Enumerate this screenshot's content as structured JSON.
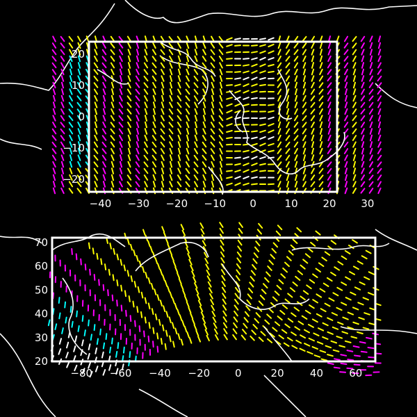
{
  "chart_data": [
    {
      "type": "quiver",
      "projection": "rotated-pole",
      "xlim": [
        -43,
        22
      ],
      "ylim": [
        -24,
        24
      ],
      "xticks": [
        -40,
        -30,
        -20,
        -10,
        0,
        10,
        20,
        30
      ],
      "yticks": [
        -20,
        -10,
        0,
        10,
        20
      ],
      "xticklabels": [
        "−40",
        "−30",
        "−20",
        "−10",
        "0",
        "10",
        "20",
        "30"
      ],
      "yticklabels": [
        "−20",
        "−10",
        "0",
        "10",
        "20"
      ],
      "grid": false,
      "colormap": [
        "#ffff00",
        "#ff00ff",
        "#00ffff"
      ]
    },
    {
      "type": "quiver",
      "projection": "plate-carree",
      "xlim": [
        -95,
        70
      ],
      "ylim": [
        20,
        72
      ],
      "xticks": [
        -80,
        -60,
        -40,
        -20,
        0,
        20,
        40,
        60
      ],
      "yticks": [
        20,
        30,
        40,
        50,
        60,
        70
      ],
      "xticklabels": [
        "−80",
        "−60",
        "−40",
        "−20",
        "0",
        "20",
        "40",
        "60"
      ],
      "yticklabels": [
        "20",
        "30",
        "40",
        "50",
        "60",
        "70"
      ],
      "grid": false,
      "colormap": [
        "#ffff00",
        "#ff00ff",
        "#00ffff"
      ]
    }
  ]
}
